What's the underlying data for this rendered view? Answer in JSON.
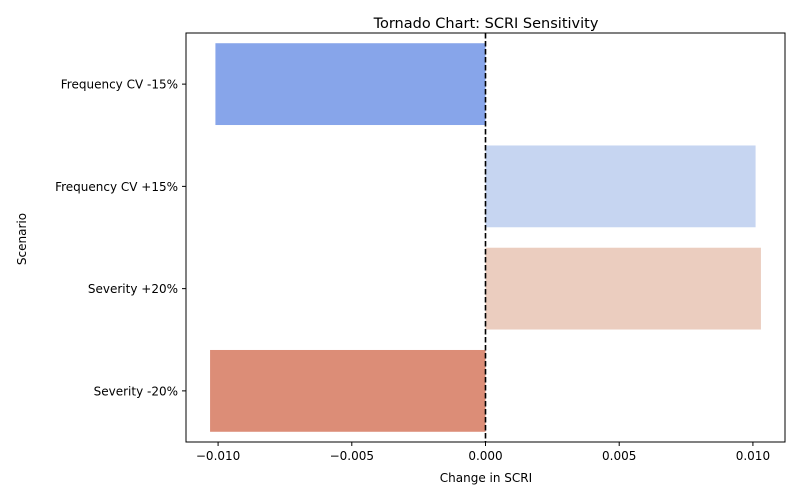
{
  "chart_data": {
    "type": "bar",
    "orientation": "horizontal",
    "title": "Tornado Chart: SCRI Sensitivity",
    "xlabel": "Change in SCRI",
    "ylabel": "Scenario",
    "xlim": [
      -0.0112,
      0.0112
    ],
    "xticks": [
      -0.01,
      -0.005,
      0.0,
      0.005,
      0.01
    ],
    "xtick_labels": [
      "−0.010",
      "−0.005",
      "0.000",
      "0.005",
      "0.010"
    ],
    "grid": false,
    "legend": "none",
    "reference_line": {
      "x": 0,
      "style": "dashed",
      "color": "#000000"
    },
    "categories": [
      "Frequency CV -15%",
      "Frequency CV +15%",
      "Severity +20%",
      "Severity -20%"
    ],
    "values": [
      -0.0101,
      0.0101,
      0.0103,
      -0.0103
    ],
    "colors": [
      "#87a5ea",
      "#c6d5f1",
      "#ebcdbf",
      "#dc8d77"
    ]
  }
}
